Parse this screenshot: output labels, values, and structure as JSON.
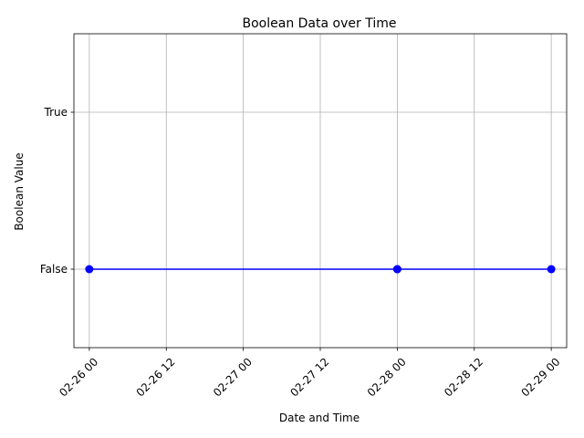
{
  "chart_data": {
    "type": "line",
    "title": "Boolean Data over Time",
    "xlabel": "Date and Time",
    "ylabel": "Boolean Value",
    "x_ticks": [
      "02-26 00",
      "02-26 12",
      "02-27 00",
      "02-27 12",
      "02-28 00",
      "02-28 12",
      "02-29 00"
    ],
    "y_ticks": [
      "False",
      "True"
    ],
    "x_range": [
      "2024-02-25 21:36",
      "2024-02-29 02:24"
    ],
    "y_range": [
      -0.5,
      1.5
    ],
    "grid": true,
    "series": [
      {
        "color": "#0000ff",
        "marker": "circle",
        "points": [
          {
            "x": "2024-02-26 00:00",
            "y": 0
          },
          {
            "x": "2024-02-28 00:00",
            "y": 0
          },
          {
            "x": "2024-02-28 00:00",
            "y": 0
          },
          {
            "x": "2024-02-29 00:00",
            "y": 0
          }
        ]
      }
    ]
  }
}
